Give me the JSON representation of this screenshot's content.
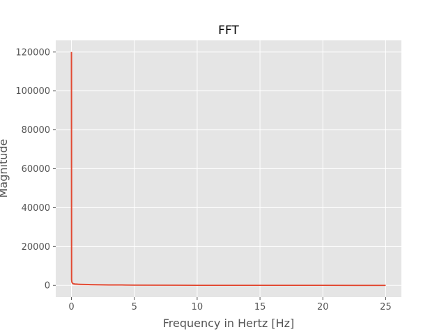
{
  "chart_data": {
    "type": "line",
    "title": "FFT",
    "xlabel": "Frequency in Hertz [Hz]",
    "ylabel": "Magnitude",
    "xlim": [
      -1.25,
      26.25
    ],
    "ylim": [
      -6000,
      126000
    ],
    "x_ticks": [
      0,
      5,
      10,
      15,
      20,
      25
    ],
    "x_tick_labels": [
      "0",
      "5",
      "10",
      "15",
      "20",
      "25"
    ],
    "y_ticks": [
      0,
      20000,
      40000,
      60000,
      80000,
      100000,
      120000
    ],
    "y_tick_labels": [
      "0",
      "20000",
      "40000",
      "60000",
      "80000",
      "100000",
      "120000"
    ],
    "grid": true,
    "legend": "none",
    "style": "ggplot",
    "colors": {
      "line": "#E24A33",
      "plot_background": "#E5E5E5",
      "grid": "#FFFFFF",
      "text": "#555555"
    },
    "series": [
      {
        "x": [
          0,
          0.01,
          0.02,
          0.03,
          0.05,
          0.08,
          0.1,
          0.15,
          0.2,
          0.3,
          0.5,
          0.7,
          1.0,
          1.5,
          2.0,
          2.5,
          3.0,
          3.5,
          4.0,
          4.3,
          5,
          10,
          15,
          20,
          25
        ],
        "values": [
          120000,
          3000,
          2500,
          1800,
          1500,
          1200,
          1000,
          900,
          800,
          700,
          600,
          550,
          500,
          400,
          350,
          300,
          280,
          260,
          240,
          220,
          150,
          100,
          80,
          60,
          50
        ]
      }
    ]
  }
}
